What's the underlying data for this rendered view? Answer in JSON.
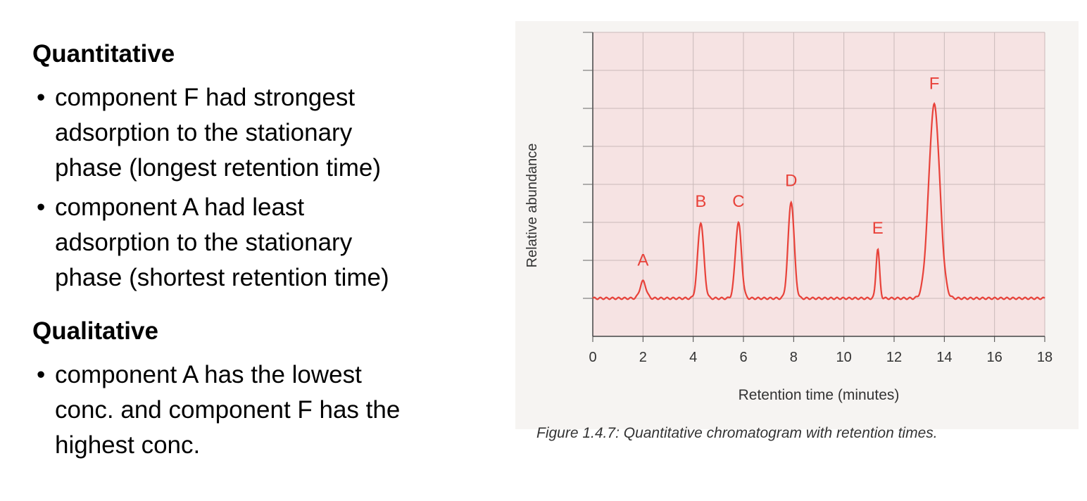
{
  "sections": [
    {
      "heading": "Quantitative",
      "bullets": [
        {
          "lines": [
            "component F had strongest",
            "adsorption to the stationary",
            "phase (longest retention time)"
          ]
        },
        {
          "lines": [
            "component A had least",
            "adsorption to the stationary",
            "phase (shortest retention time)"
          ]
        }
      ]
    },
    {
      "heading": "Qualitative",
      "bullets": [
        {
          "lines": [
            "component A has the lowest",
            "conc. and component F has the",
            "highest conc."
          ]
        }
      ]
    }
  ],
  "chart_data": {
    "type": "line",
    "xlabel": "Retention time (minutes)",
    "ylabel": "Relative abundance",
    "xlim": [
      0,
      18
    ],
    "ylim": [
      0,
      8
    ],
    "xticks": [
      "0",
      "2",
      "4",
      "6",
      "8",
      "10",
      "12",
      "14",
      "16",
      "18"
    ],
    "baseline": 1,
    "peaks": [
      {
        "label": "A",
        "x": 2.0,
        "height": 1.45
      },
      {
        "label": "B",
        "x": 4.3,
        "height": 3.0
      },
      {
        "label": "C",
        "x": 5.8,
        "height": 3.0
      },
      {
        "label": "D",
        "x": 7.9,
        "height": 3.55
      },
      {
        "label": "E",
        "x": 11.35,
        "height": 2.3
      },
      {
        "label": "F",
        "x": 13.6,
        "height": 6.1
      }
    ],
    "line_color": "#e8423a",
    "grid": true,
    "grid_color": "#c9b9b9",
    "plot_background": "#f6e3e3"
  },
  "caption": "Figure 1.4.7: Quantitative chromatogram with retention times."
}
